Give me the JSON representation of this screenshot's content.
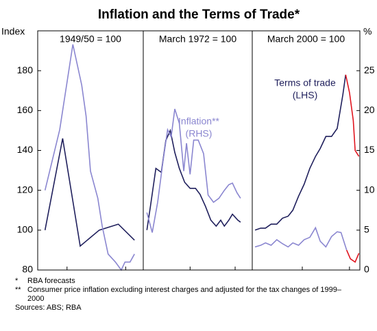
{
  "chart_data": {
    "type": "line",
    "title": "Inflation and the Terms of Trade*",
    "ylabel": "Index",
    "y2label": "%",
    "ylim": [
      80,
      200
    ],
    "yticks": [
      80,
      100,
      120,
      140,
      160,
      180
    ],
    "y2lim": [
      0,
      30
    ],
    "y2ticks": [
      0,
      5,
      10,
      15,
      20,
      25
    ],
    "annotations": [
      {
        "text": "Terms of trade",
        "sub": "(LHS)",
        "color": "#1f1f5c"
      },
      {
        "text": "Inflation**",
        "sub": "(RHS)",
        "color": "#8a86d0"
      }
    ],
    "panels": [
      {
        "subtitle": "1949/50 = 100",
        "xlim": [
          1949,
          1956.2
        ],
        "xticks": [
          1951,
          1955
        ],
        "series": [
          {
            "color": "#1f1f5c",
            "axis": "y",
            "x": [
              1949.5,
              1950.7,
              1951.9,
              1953.2,
              1954.5,
              1955.6
            ],
            "values": [
              100,
              146,
              92,
              100,
              103,
              95
            ]
          },
          {
            "color": "#8a86d0",
            "axis": "y2",
            "x": [
              1949.5,
              1950.5,
              1951.4,
              1952.0,
              1952.3,
              1952.6,
              1953.1,
              1953.4,
              1953.8,
              1954.3,
              1954.7,
              1954.95,
              1955.3,
              1955.6
            ],
            "values": [
              10,
              17.6,
              28.3,
              23.2,
              19.3,
              12.4,
              9,
              5.5,
              2,
              1,
              0,
              1,
              1,
              2
            ]
          }
        ]
      },
      {
        "subtitle": "March 1972 = 100",
        "xlim": [
          1970.8,
          1982.9
        ],
        "xticks": [
          1976,
          1981
        ],
        "series": [
          {
            "color": "#1f1f5c",
            "axis": "y",
            "x": [
              1971.2,
              1971.6,
              1972.2,
              1972.8,
              1973.3,
              1973.8,
              1974.3,
              1974.8,
              1975.4,
              1976.0,
              1976.6,
              1977.1,
              1977.7,
              1978.3,
              1978.9,
              1979.4,
              1979.8,
              1980.3,
              1980.7,
              1981.3,
              1981.6
            ],
            "values": [
              100,
              112,
              131,
              129,
              145,
              150,
              139,
              131,
              124,
              121,
              121,
              118,
              112,
              105,
              102,
              105,
              102,
              105,
              108,
              105,
              104
            ]
          },
          {
            "color": "#8a86d0",
            "axis": "y2",
            "x": [
              1971.2,
              1971.8,
              1972.4,
              1973.0,
              1973.5,
              1973.9,
              1974.3,
              1974.8,
              1975.3,
              1975.6,
              1976.0,
              1976.4,
              1976.9,
              1977.5,
              1978.0,
              1978.6,
              1979.2,
              1979.8,
              1980.3,
              1980.7,
              1981.2,
              1981.6
            ],
            "values": [
              7.2,
              4.7,
              8.5,
              13.7,
              17.6,
              16.7,
              20.2,
              18.4,
              12.4,
              15.9,
              12,
              16.3,
              16.3,
              14.6,
              9.4,
              8.5,
              9,
              10,
              10.7,
              10.9,
              9.7,
              9
            ]
          }
        ]
      },
      {
        "subtitle": "March 2000 = 100",
        "xlim": [
          1998.7,
          2010.1
        ],
        "xticks": [
          2004,
          2009
        ],
        "series": [
          {
            "color": "#1f1f5c",
            "axis": "y",
            "x": [
              1999.0,
              1999.6,
              2000.1,
              2000.7,
              2001.3,
              2001.9,
              2002.5,
              2003.0,
              2003.6,
              2004.2,
              2004.8,
              2005.4,
              2005.9,
              2006.5,
              2007.1,
              2007.7,
              2008.3,
              2008.6
            ],
            "values": [
              100,
              101,
              101,
              103,
              103,
              106,
              107,
              110,
              117,
              123,
              131,
              137,
              141,
              147,
              147,
              151,
              168,
              178
            ]
          },
          {
            "color": "#e0141e",
            "axis": "y",
            "x": [
              2008.6,
              2009.0,
              2009.4,
              2009.6,
              2010.0
            ],
            "values": [
              178,
              169,
              155,
              140,
              137
            ]
          },
          {
            "color": "#8a86d0",
            "axis": "y2",
            "x": [
              1999.0,
              1999.6,
              2000.1,
              2000.7,
              2001.3,
              2001.9,
              2002.5,
              2003.0,
              2003.6,
              2004.2,
              2004.8,
              2005.4,
              2005.9,
              2006.5,
              2007.1,
              2007.7,
              2008.1,
              2008.4,
              2008.7
            ],
            "values": [
              2.9,
              3.1,
              3.4,
              3.1,
              3.8,
              3.3,
              2.9,
              3.4,
              3.1,
              3.8,
              4.1,
              5.3,
              3.6,
              2.9,
              4.2,
              4.8,
              4.7,
              3.6,
              2.5
            ]
          },
          {
            "color": "#e0141e",
            "axis": "y2",
            "x": [
              2008.7,
              2009.1,
              2009.6,
              2010.0
            ],
            "values": [
              2.5,
              1.4,
              1.0,
              2.1
            ]
          }
        ]
      }
    ]
  },
  "footnotes": [
    {
      "marker": "*",
      "text": "RBA forecasts"
    },
    {
      "marker": "**",
      "text": "Consumer price inflation excluding interest charges and adjusted for the tax changes of 1999–2000"
    }
  ],
  "sources": "Sources: ABS; RBA"
}
